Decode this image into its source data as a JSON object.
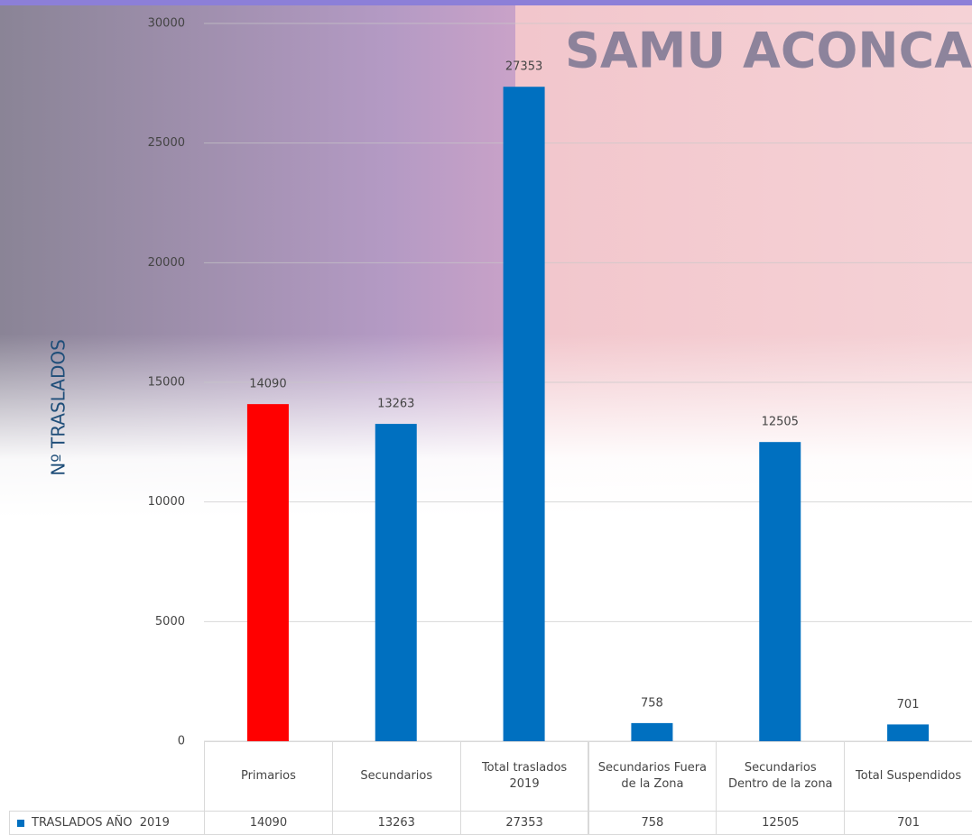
{
  "chart_data": {
    "type": "bar",
    "background_text": "SAMU ACONCA",
    "y_label": "Nº TRASLADOS",
    "categories": [
      "Primarios",
      "Secundarios",
      "Total traslados 2019",
      "Secundarios Fuera de la Zona",
      "Secundarios Dentro de la zona",
      "Total Suspendidos"
    ],
    "series": [
      {
        "name": "TRASLADOS AÑO  2019",
        "color": "#0070c0",
        "values": [
          14090,
          13263,
          27353,
          758,
          12505,
          701
        ],
        "colors": [
          "#ff0000",
          "#0070c0",
          "#0070c0",
          "#0070c0",
          "#0070c0",
          "#0070c0"
        ]
      }
    ],
    "ylim": [
      0,
      30000
    ],
    "yticks": [
      0,
      5000,
      10000,
      15000,
      20000,
      25000,
      30000
    ],
    "grid": true,
    "data_table": true
  }
}
